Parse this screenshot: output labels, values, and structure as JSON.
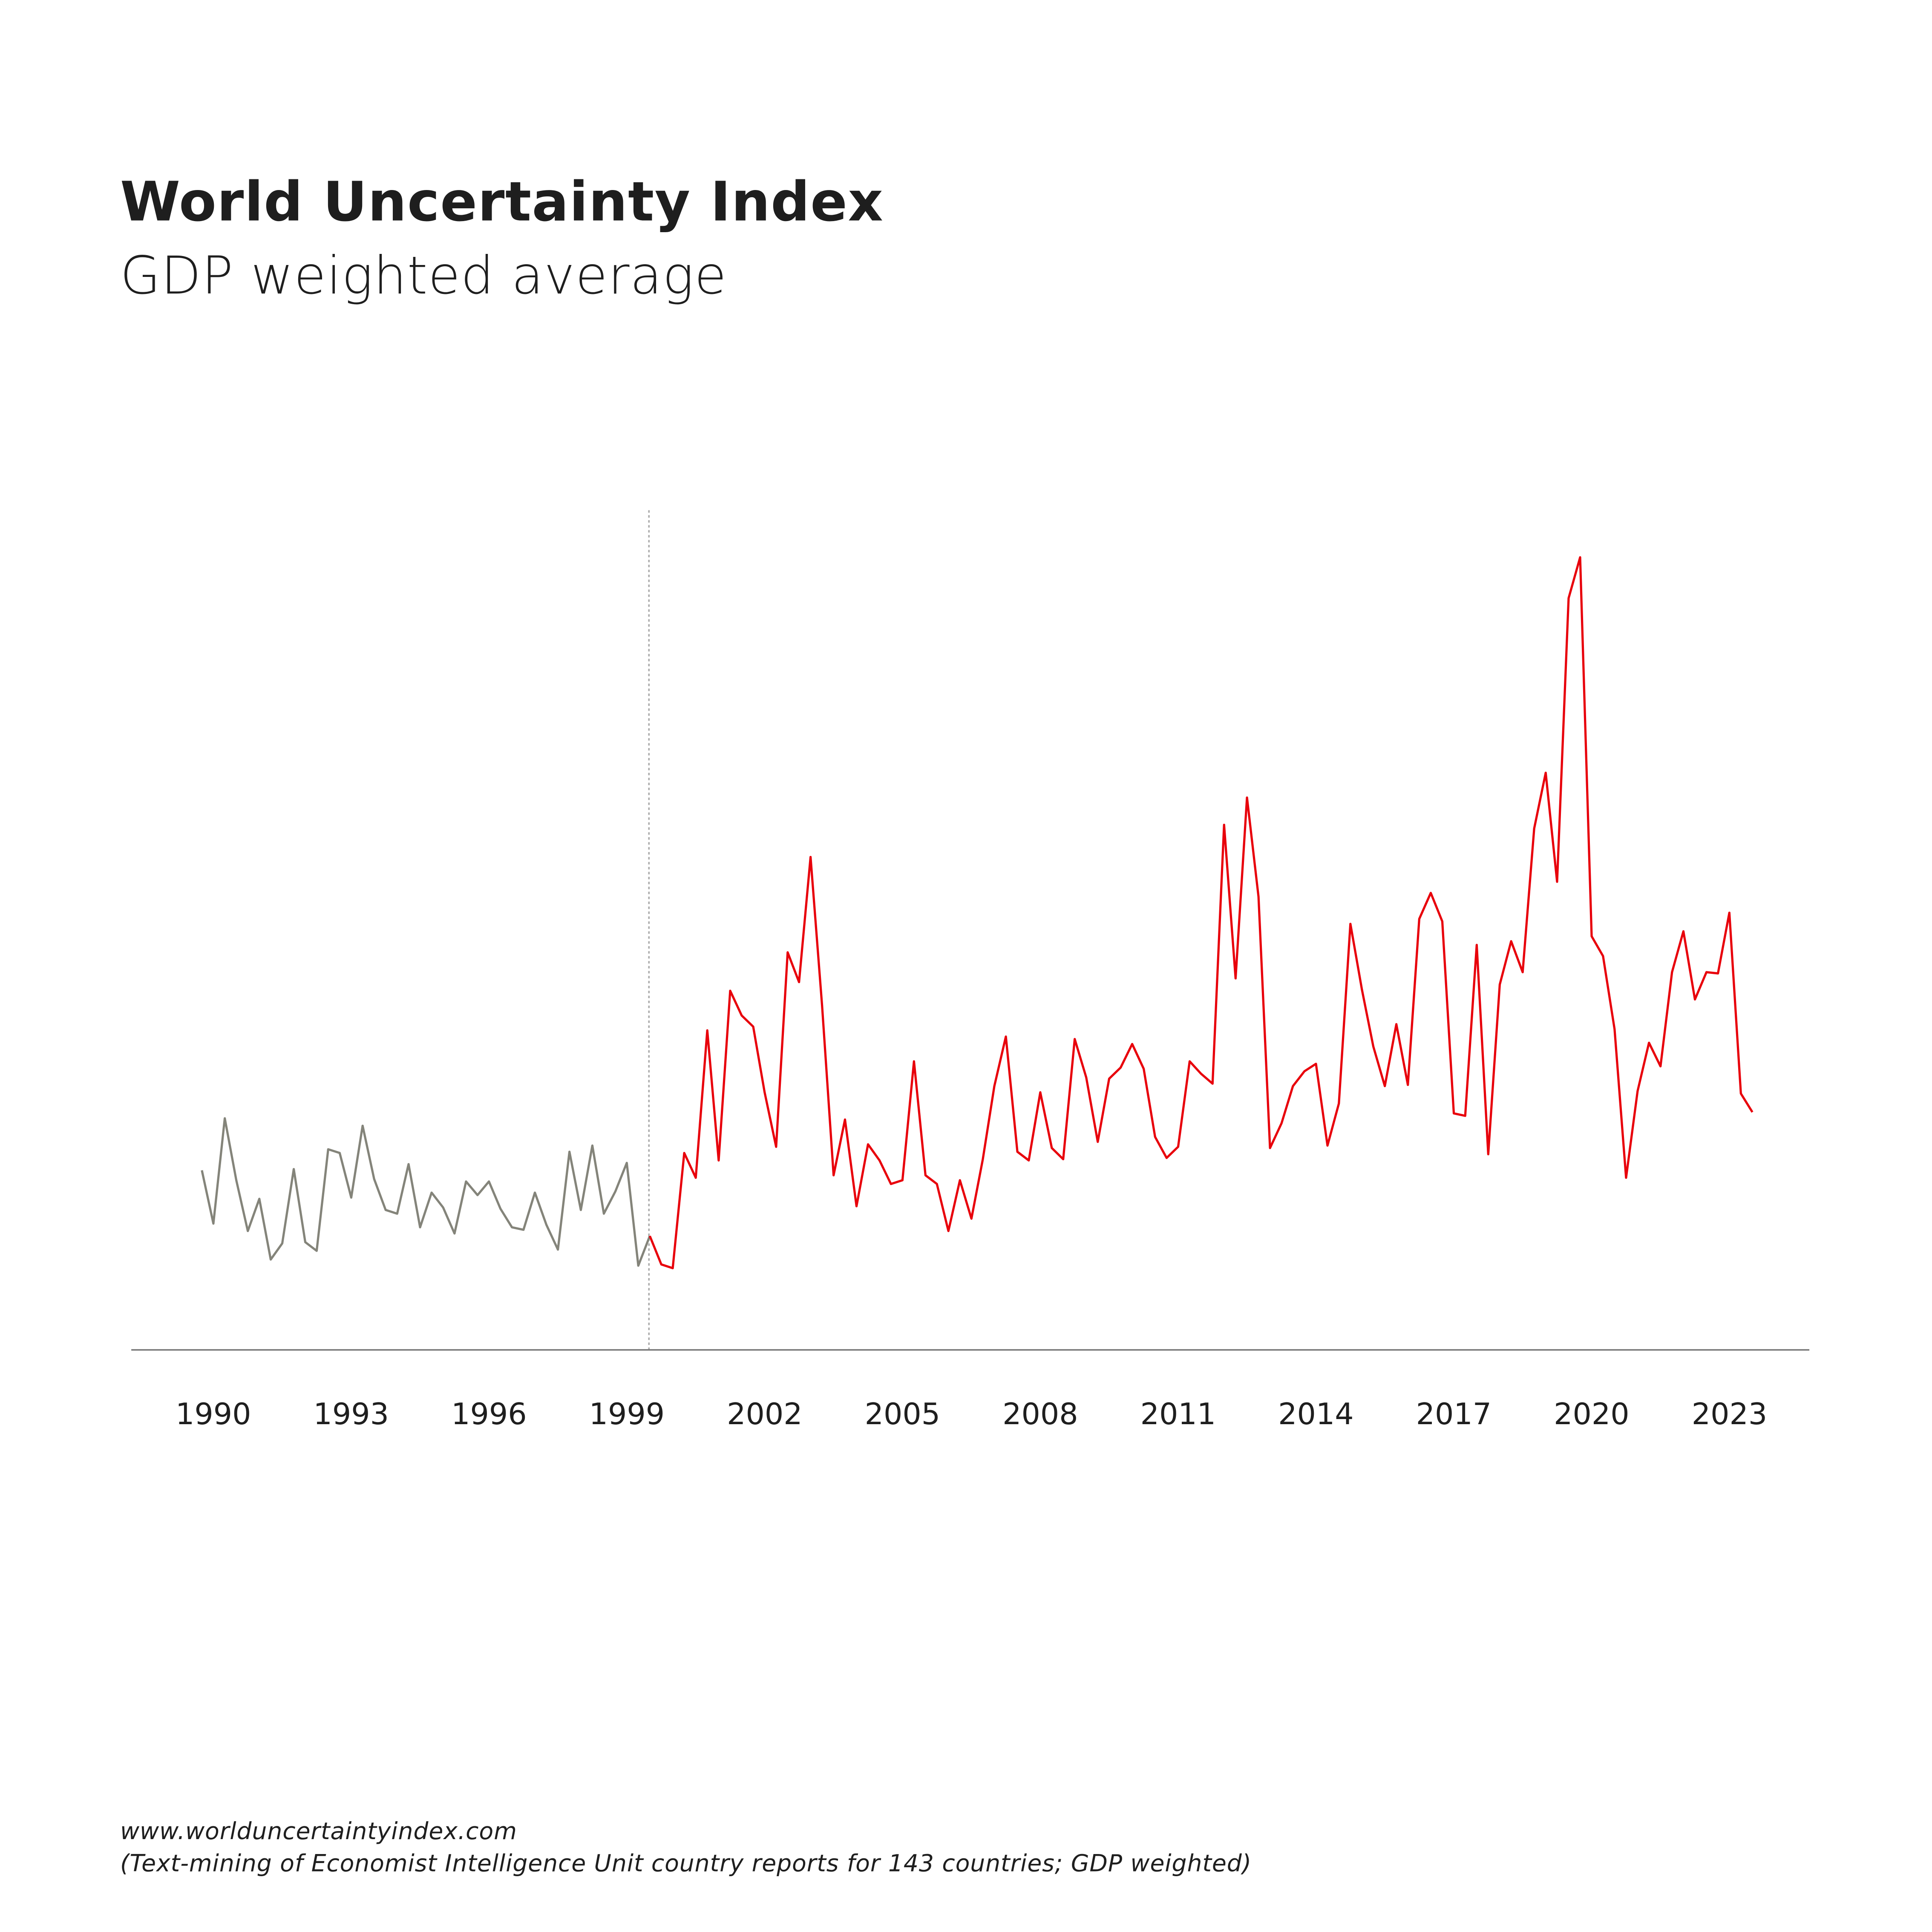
{
  "chart_data": {
    "type": "line",
    "title": "World Uncertainty Index",
    "subtitle": "GDP weighted average",
    "xlabel": "",
    "ylabel": "",
    "x_start": "1990 Q1",
    "frequency": "quarterly",
    "x_tick_labels": [
      "1990",
      "1993",
      "1996",
      "1999",
      "2002",
      "2005",
      "2008",
      "2011",
      "2014",
      "2017",
      "2020",
      "2023"
    ],
    "y_axis": "unlabeled (relative units)",
    "ylim": [
      0,
      680
    ],
    "grid": false,
    "legend": "none",
    "divider_at": "1999 Q4",
    "series": [
      {
        "color": "#84847a",
        "start_index": 0,
        "values": [
          145,
          102,
          187,
          137,
          96,
          122,
          73,
          86,
          146,
          87,
          80,
          162,
          159,
          123,
          181,
          138,
          113,
          110,
          150,
          99,
          127,
          115,
          94,
          136,
          125,
          136,
          114,
          99,
          97,
          127,
          101,
          81,
          160,
          113,
          165,
          110,
          128,
          151,
          68,
          92
        ]
      },
      {
        "color": "#e8000b",
        "start_index": 39,
        "values": [
          92,
          69,
          66,
          159,
          139,
          258,
          153,
          290,
          270,
          261,
          208,
          164,
          321,
          297,
          398,
          278,
          141,
          186,
          116,
          166,
          153,
          134,
          137,
          233,
          141,
          134,
          96,
          137,
          106,
          154,
          213,
          253,
          160,
          153,
          208,
          163,
          154,
          251,
          220,
          168,
          219,
          228,
          247,
          227,
          172,
          155,
          164,
          233,
          223,
          215,
          424,
          300,
          446,
          366,
          163,
          183,
          213,
          225,
          231,
          165,
          199,
          344,
          291,
          245,
          213,
          263,
          214,
          348,
          369,
          346,
          191,
          189,
          327,
          158,
          295,
          330,
          305,
          421,
          466,
          378,
          607,
          640,
          334,
          318,
          259,
          139,
          209,
          248,
          229,
          305,
          338,
          283,
          305,
          304,
          353,
          207,
          192
        ]
      }
    ]
  },
  "footer": {
    "url": "www.worlduncertaintyindex.com",
    "note": "(Text-mining of Economist Intelligence Unit country reports for 143 countries; GDP weighted)"
  }
}
